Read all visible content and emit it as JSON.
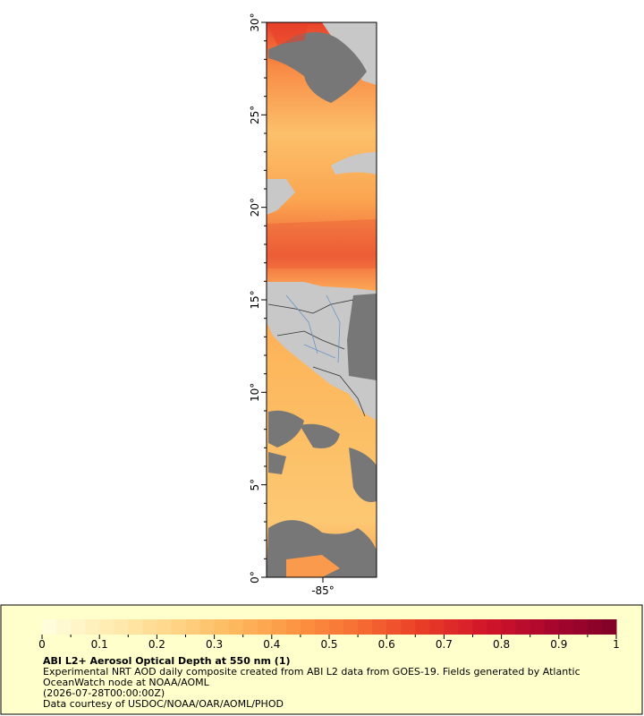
{
  "map": {
    "lat_ticks": [
      {
        "value": 30,
        "label": "30°"
      },
      {
        "value": 25,
        "label": "25°"
      },
      {
        "value": 20,
        "label": "20°"
      },
      {
        "value": 15,
        "label": "15°"
      },
      {
        "value": 10,
        "label": "10°"
      },
      {
        "value": 5,
        "label": "5°"
      },
      {
        "value": 0,
        "label": "0°"
      }
    ],
    "lon_ticks": [
      {
        "value": -85,
        "label": "-85°"
      }
    ]
  },
  "colorbar": {
    "ticks": [
      0,
      0.1,
      0.2,
      0.3,
      0.4,
      0.5,
      0.6,
      0.7,
      0.8,
      0.9,
      1
    ],
    "colors": [
      "#ffffe0",
      "#ffedb5",
      "#fed78a",
      "#fdb95e",
      "#fc9442",
      "#f66b32",
      "#e83a26",
      "#d0142a",
      "#a8062e",
      "#7f0026"
    ]
  },
  "legend": {
    "title": "ABI L2+ Aerosol Optical Depth at 550 nm (1)",
    "description": "Experimental NRT AOD daily composite created from ABI L2 data from GOES-19. Fields generated by Atlantic OceanWatch node at NOAA/AOML",
    "time": "(2026-07-28T00:00:00Z)",
    "credit": "Data courtesy of USDOC/NOAA/OAR/AOML/PHOD"
  }
}
